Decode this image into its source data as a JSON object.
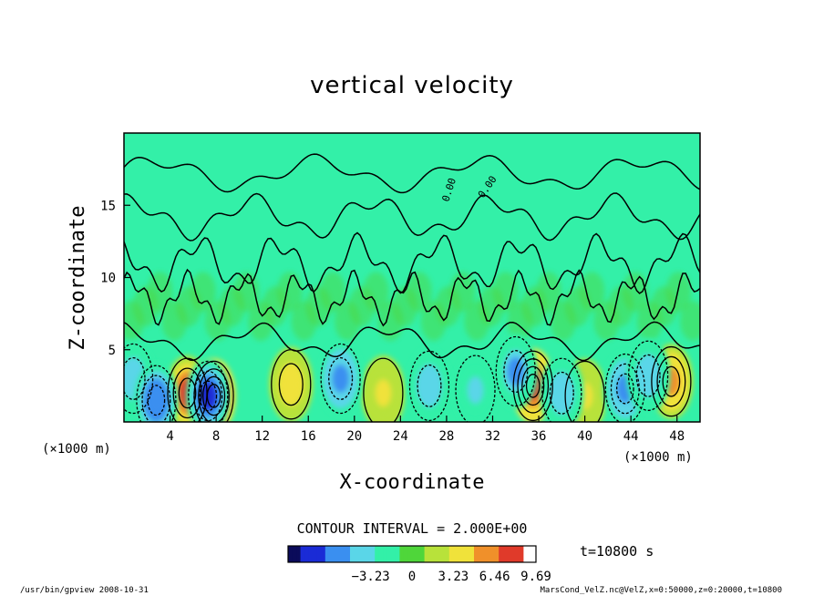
{
  "chart_data": {
    "type": "heatmap",
    "title": "vertical velocity",
    "xlabel": "X-coordinate",
    "ylabel": "Z-coordinate",
    "x_unit_left": "(×1000 m)",
    "x_unit_right": "(×1000 m)",
    "xlim": [
      0,
      50
    ],
    "ylim": [
      0,
      20
    ],
    "xticks": [
      4,
      8,
      12,
      16,
      20,
      24,
      28,
      32,
      36,
      40,
      44,
      48
    ],
    "yticks": [
      5,
      10,
      15
    ],
    "contour_interval_text": "CONTOUR INTERVAL = 2.000E+00",
    "contour_labels": [
      "0.00",
      "0.00"
    ],
    "colorbar": {
      "range": [
        -9.69,
        9.69
      ],
      "tick_values": [
        -3.23,
        0,
        3.23,
        6.46,
        9.69
      ],
      "tick_labels": [
        "−3.23",
        "0",
        "3.23",
        "6.46",
        "9.69"
      ]
    },
    "time_label": "t=10800 s",
    "features": [
      {
        "kind": "updraft",
        "x": 5.5,
        "z": 2.0,
        "peak": 7.5
      },
      {
        "kind": "updraft",
        "x": 7.8,
        "z": 1.8,
        "peak": 9.69
      },
      {
        "kind": "updraft",
        "x": 14.5,
        "z": 2.6,
        "peak": 4.5
      },
      {
        "kind": "updraft",
        "x": 22.5,
        "z": 2.0,
        "peak": 3.2
      },
      {
        "kind": "updraft",
        "x": 35.5,
        "z": 2.5,
        "peak": 8.5
      },
      {
        "kind": "updraft",
        "x": 40.0,
        "z": 1.8,
        "peak": 3.5
      },
      {
        "kind": "updraft",
        "x": 47.5,
        "z": 2.8,
        "peak": 6.0
      },
      {
        "kind": "downdraft",
        "x": 0.8,
        "z": 3.0,
        "peak": -4.5
      },
      {
        "kind": "downdraft",
        "x": 2.8,
        "z": 1.5,
        "peak": -6.5
      },
      {
        "kind": "downdraft",
        "x": 7.3,
        "z": 1.8,
        "peak": -7.0
      },
      {
        "kind": "downdraft",
        "x": 18.8,
        "z": 3.0,
        "peak": -5.5
      },
      {
        "kind": "downdraft",
        "x": 26.5,
        "z": 2.5,
        "peak": -4.0
      },
      {
        "kind": "downdraft",
        "x": 30.5,
        "z": 2.2,
        "peak": -3.5
      },
      {
        "kind": "downdraft",
        "x": 34.0,
        "z": 3.5,
        "peak": -5.0
      },
      {
        "kind": "downdraft",
        "x": 38.0,
        "z": 2.0,
        "peak": -4.5
      },
      {
        "kind": "downdraft",
        "x": 43.5,
        "z": 2.3,
        "peak": -6.0
      },
      {
        "kind": "downdraft",
        "x": 45.5,
        "z": 3.2,
        "peak": -4.0
      }
    ]
  },
  "footer": {
    "left": "/usr/bin/gpview   2008-10-31",
    "right": "MarsCond_VelZ.nc@VelZ,x=0:50000,z=0:20000,t=10800"
  },
  "colors": {
    "background_field": "#33f0a8",
    "contour_line": "#000000",
    "colormap": [
      "#0b0b5a",
      "#1a2bd6",
      "#3a8ff0",
      "#5ad6e8",
      "#33f0a8",
      "#4fd63a",
      "#b8e23a",
      "#f0e23a",
      "#f0902a",
      "#e03a2a",
      "#ffffff"
    ]
  }
}
